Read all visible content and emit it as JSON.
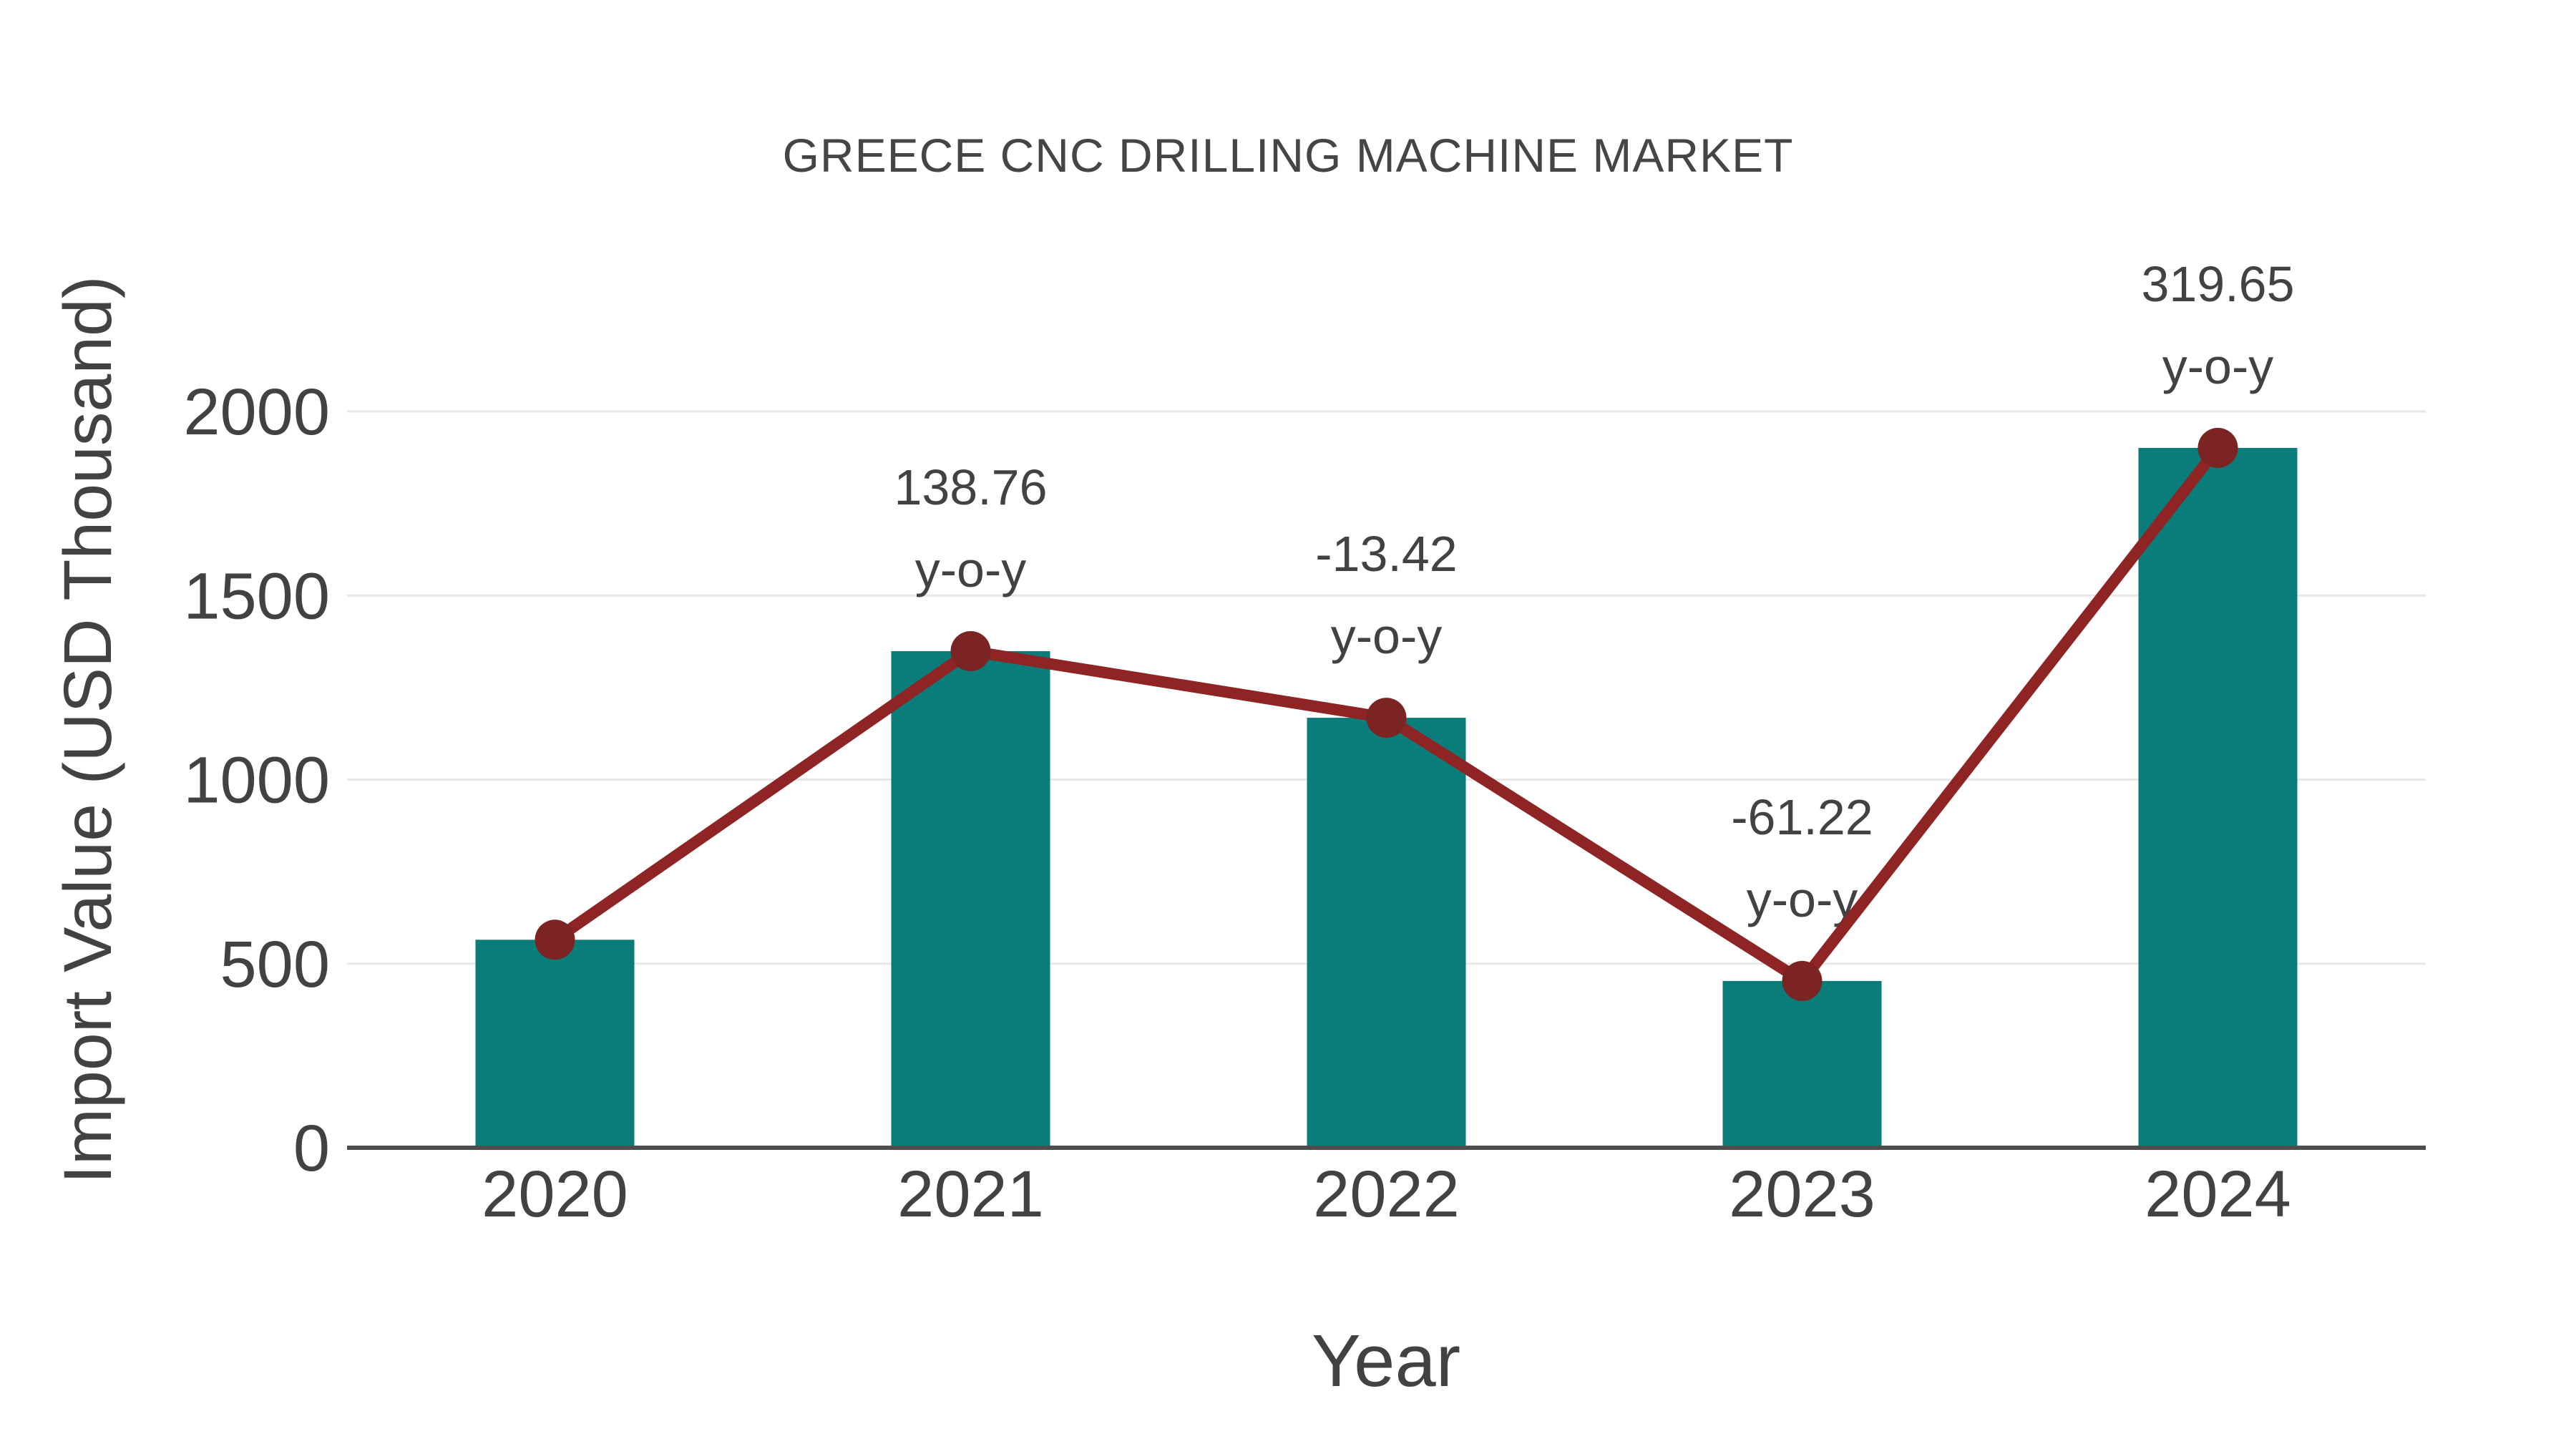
{
  "title": "GREECE CNC DRILLING MACHINE MARKET",
  "chart_data": {
    "type": "bar",
    "title": "GREECE CNC DRILLING MACHINE MARKET",
    "xlabel": "Year",
    "ylabel": "Import Value (USD Thousand)",
    "categories": [
      "2020",
      "2021",
      "2022",
      "2023",
      "2024"
    ],
    "series": [
      {
        "name": "Import Value (USD Thousand)",
        "type": "bar",
        "values": [
          565,
          1349,
          1168,
          453,
          1901
        ]
      },
      {
        "name": "y-o-y trend",
        "type": "line",
        "values": [
          565,
          1349,
          1168,
          453,
          1901
        ]
      }
    ],
    "yoy_labels": [
      "",
      "138.76",
      "-13.42",
      "-61.22",
      "319.65"
    ],
    "yoy_suffix": "y-o-y",
    "yticks": [
      0,
      500,
      1000,
      1500,
      2000
    ],
    "ylim": [
      0,
      2150
    ],
    "grid": true,
    "legend_position": "none",
    "colors": {
      "bar": "#0a7d7a",
      "line": "#8e2424",
      "marker": "#7c2323",
      "grid": "#e8e8e8",
      "axis": "#4d4d4d",
      "text": "#424242",
      "title": "#454545"
    }
  }
}
